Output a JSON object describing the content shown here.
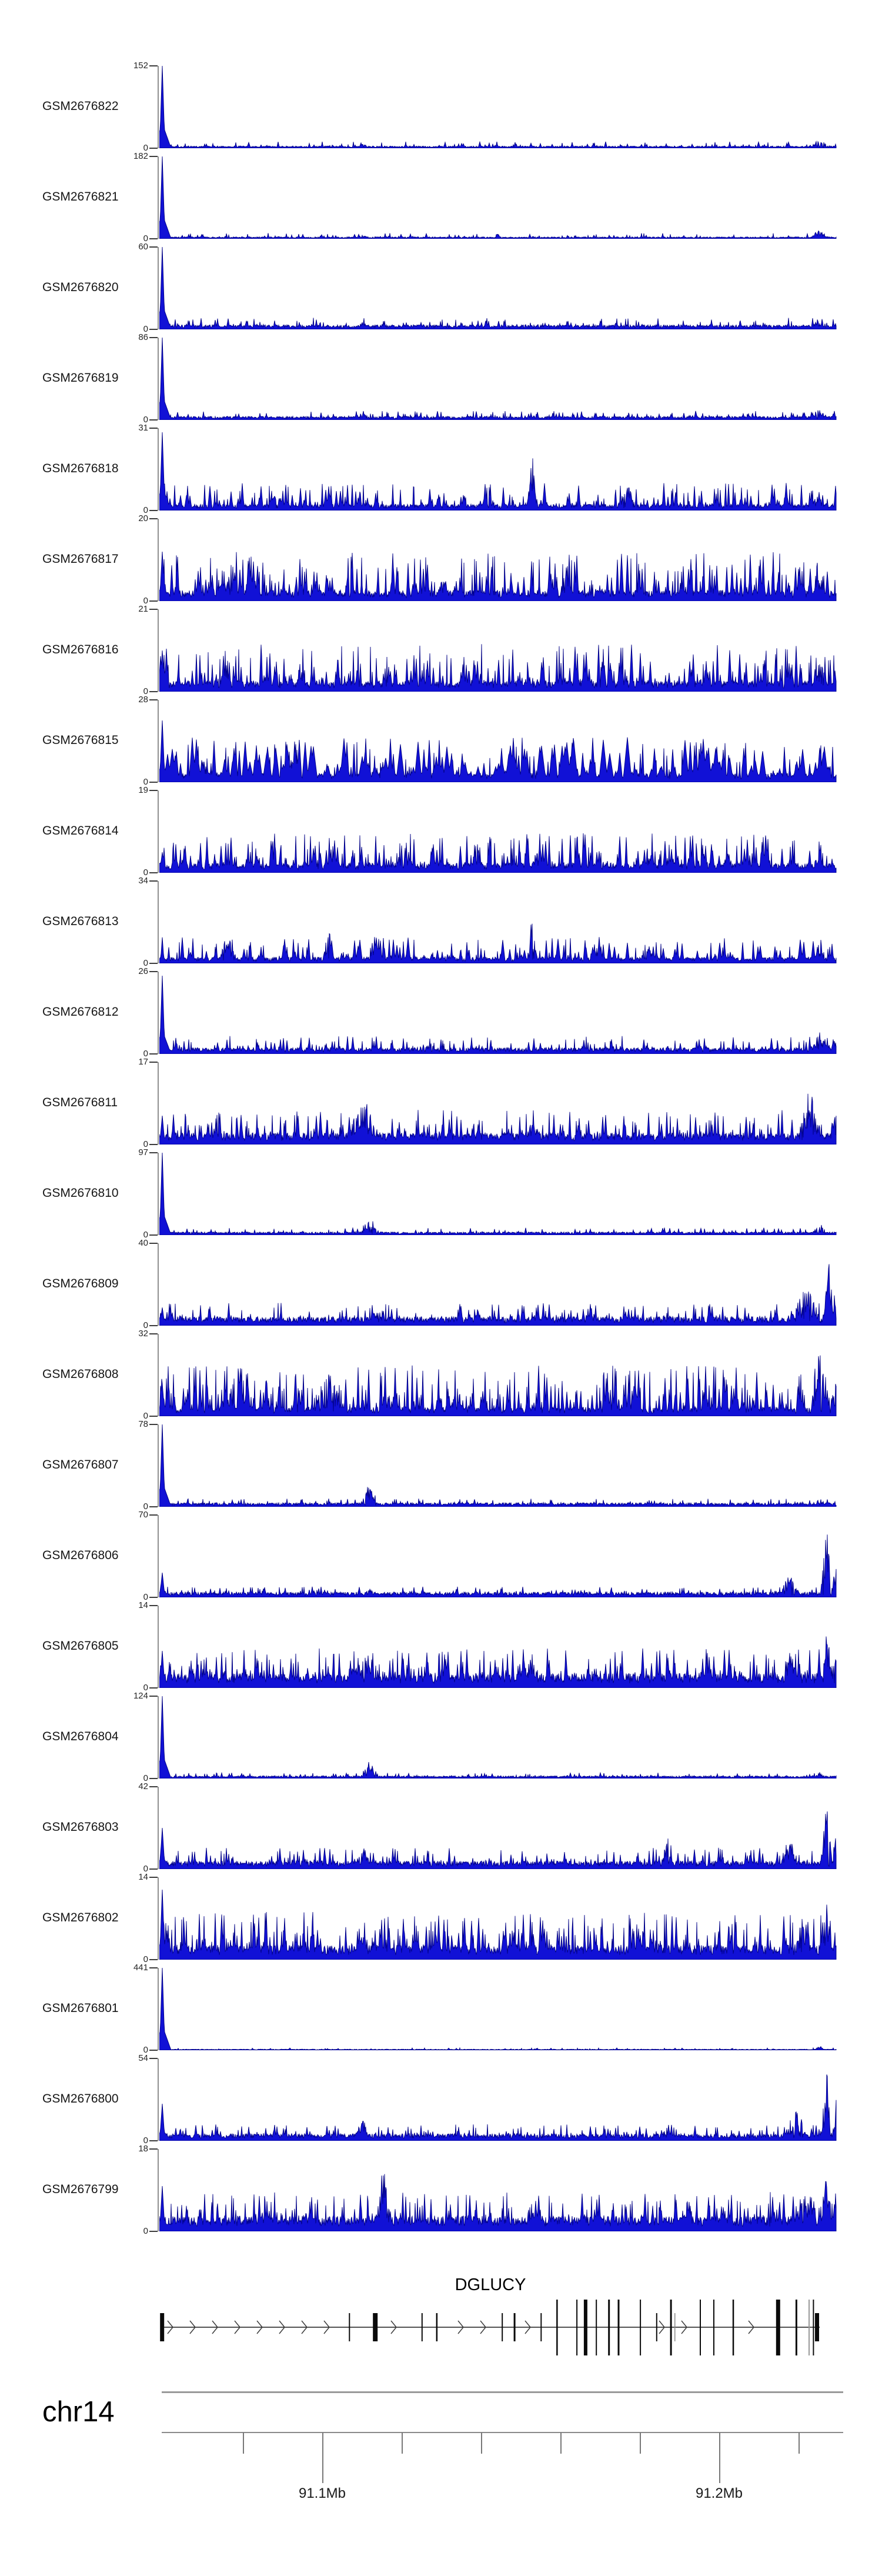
{
  "chart_data": {
    "type": "area",
    "title": "",
    "description": "Genome browser figure: 24 GEO sample (GSM) read-coverage tracks shown as blue filled signal over the DGLUCY locus on chromosome 14 (~91.06-91.23 Mb). Each track is autoscaled from 0 to its own maximum (value shown at top-left of each track). Below the signal tracks is the DGLUCY gene model (plus-strand, rightward arrows, vertical exon marks) and a genomic coordinate axis.",
    "region": {
      "chromosome": "chr14",
      "start_mb": 91.059,
      "end_mb": 91.23
    },
    "signal_color": "#1111d6",
    "signal_edge_color": "#000085",
    "y_axis_zero_label": "0",
    "tracks": [
      {
        "name": "GSM2676822",
        "ymax": 152,
        "seed": 101,
        "profile": {
          "left": 1,
          "base": 0.025,
          "gap": 6,
          "amp": 0.08,
          "pow": 2.5,
          "w": 2.4,
          "bumps": [
            [
              0.3,
              0.06,
              10
            ],
            [
              0.975,
              0.13,
              8
            ]
          ]
        }
      },
      {
        "name": "GSM2676821",
        "ymax": 182,
        "seed": 202,
        "profile": {
          "left": 1,
          "base": 0.022,
          "gap": 6,
          "amp": 0.07,
          "pow": 2.5,
          "w": 2.4,
          "bumps": [
            [
              0.3,
              0.05,
              8
            ],
            [
              0.5,
              0.13,
              3
            ],
            [
              0.975,
              0.15,
              8
            ]
          ]
        }
      },
      {
        "name": "GSM2676820",
        "ymax": 60,
        "seed": 303,
        "profile": {
          "left": 1,
          "base": 0.05,
          "gap": 5,
          "amp": 0.14,
          "pow": 2.2,
          "w": 2.4,
          "bumps": [
            [
              0.3,
              0.1,
              10
            ],
            [
              0.975,
              0.18,
              8
            ]
          ]
        }
      },
      {
        "name": "GSM2676819",
        "ymax": 86,
        "seed": 404,
        "profile": {
          "left": 1,
          "base": 0.04,
          "gap": 5,
          "amp": 0.11,
          "pow": 2.2,
          "w": 2.4,
          "bumps": [
            [
              0.3,
              0.09,
              10
            ],
            [
              0.975,
              0.15,
              8
            ]
          ]
        }
      },
      {
        "name": "GSM2676818",
        "ymax": 31,
        "seed": 505,
        "profile": {
          "left": 0.95,
          "base": 0.07,
          "gap": 4,
          "amp": 0.34,
          "pow": 2.1,
          "w": 3,
          "bumps": [
            [
              0.17,
              0.25,
              12
            ],
            [
              0.55,
              0.85,
              4
            ],
            [
              0.69,
              0.38,
              8
            ],
            [
              0.975,
              0.3,
              8
            ]
          ]
        }
      },
      {
        "name": "GSM2676817",
        "ymax": 20,
        "seed": 606,
        "profile": {
          "left": 0.6,
          "base": 0.12,
          "gap": 3,
          "amp": 0.6,
          "pow": 1.8,
          "w": 3,
          "bumps": [
            [
              0.1,
              0.3,
              15
            ],
            [
              0.42,
              0.3,
              10
            ],
            [
              0.975,
              0.35,
              8
            ]
          ]
        }
      },
      {
        "name": "GSM2676816",
        "ymax": 21,
        "seed": 707,
        "profile": {
          "left": 0.5,
          "base": 0.12,
          "gap": 3,
          "amp": 0.58,
          "pow": 1.8,
          "w": 3,
          "bumps": [
            [
              0.21,
              0.45,
              6
            ],
            [
              0.62,
              0.3,
              10
            ],
            [
              0.975,
              0.4,
              8
            ]
          ]
        }
      },
      {
        "name": "GSM2676815",
        "ymax": 28,
        "seed": 808,
        "profile": {
          "left": 0.75,
          "base": 0.1,
          "gap": 4,
          "amp": 0.55,
          "pow": 1.6,
          "w": 7,
          "bumps": [
            [
              0.07,
              0.35,
              14
            ],
            [
              0.19,
              0.45,
              10
            ],
            [
              0.33,
              0.35,
              14
            ],
            [
              0.52,
              0.5,
              8
            ],
            [
              0.975,
              0.45,
              8
            ]
          ]
        }
      },
      {
        "name": "GSM2676814",
        "ymax": 19,
        "seed": 909,
        "profile": {
          "left": 0.25,
          "base": 0.11,
          "gap": 3,
          "amp": 0.48,
          "pow": 1.9,
          "w": 3,
          "bumps": [
            [
              0.47,
              0.45,
              6
            ],
            [
              0.56,
              0.35,
              8
            ],
            [
              0.72,
              0.3,
              8
            ],
            [
              0.975,
              0.35,
              8
            ]
          ]
        }
      },
      {
        "name": "GSM2676813",
        "ymax": 34,
        "seed": 1010,
        "profile": {
          "left": 0.2,
          "base": 0.07,
          "gap": 4,
          "amp": 0.32,
          "pow": 2.1,
          "w": 4,
          "bumps": [
            [
              0.1,
              0.35,
              10
            ],
            [
              0.25,
              0.5,
              5
            ],
            [
              0.55,
              0.75,
              4
            ],
            [
              0.72,
              0.3,
              8
            ],
            [
              0.975,
              0.35,
              6
            ]
          ]
        }
      },
      {
        "name": "GSM2676812",
        "ymax": 26,
        "seed": 1111,
        "profile": {
          "left": 0.95,
          "base": 0.07,
          "gap": 4,
          "amp": 0.22,
          "pow": 2.2,
          "w": 2.4,
          "bumps": [
            [
              0.4,
              0.25,
              6
            ],
            [
              0.63,
              0.25,
              6
            ],
            [
              0.975,
              0.3,
              8
            ]
          ]
        }
      },
      {
        "name": "GSM2676811",
        "ymax": 17,
        "seed": 1212,
        "profile": {
          "left": 0.35,
          "base": 0.13,
          "gap": 3,
          "amp": 0.42,
          "pow": 1.9,
          "w": 3,
          "bumps": [
            [
              0.3,
              0.55,
              18
            ],
            [
              0.55,
              0.35,
              10
            ],
            [
              0.96,
              0.75,
              12
            ],
            [
              0.999,
              0.5,
              6
            ]
          ]
        }
      },
      {
        "name": "GSM2676810",
        "ymax": 97,
        "seed": 1313,
        "profile": {
          "left": 1,
          "base": 0.035,
          "gap": 5,
          "amp": 0.09,
          "pow": 2.4,
          "w": 2.4,
          "bumps": [
            [
              0.31,
              0.26,
              9
            ],
            [
              0.975,
              0.14,
              8
            ]
          ]
        }
      },
      {
        "name": "GSM2676809",
        "ymax": 40,
        "seed": 1414,
        "profile": {
          "left": 0.22,
          "base": 0.1,
          "gap": 4,
          "amp": 0.28,
          "pow": 2.0,
          "w": 2.6,
          "bumps": [
            [
              0.32,
              0.27,
              8
            ],
            [
              0.47,
              0.22,
              8
            ],
            [
              0.63,
              0.18,
              8
            ],
            [
              0.75,
              0.28,
              6
            ],
            [
              0.955,
              0.55,
              14
            ],
            [
              0.988,
              1,
              5
            ],
            [
              0.999,
              0.6,
              4
            ]
          ]
        }
      },
      {
        "name": "GSM2676808",
        "ymax": 32,
        "seed": 1515,
        "profile": {
          "left": 0.4,
          "base": 0.1,
          "gap": 3,
          "amp": 0.62,
          "pow": 1.7,
          "w": 2.6,
          "bumps": [
            [
              0.12,
              0.85,
              5
            ],
            [
              0.26,
              0.5,
              6
            ],
            [
              0.44,
              0.4,
              8
            ],
            [
              0.7,
              0.45,
              8
            ],
            [
              0.975,
              0.9,
              5
            ],
            [
              0.999,
              0.5,
              5
            ]
          ]
        }
      },
      {
        "name": "GSM2676807",
        "ymax": 78,
        "seed": 1616,
        "profile": {
          "left": 1,
          "base": 0.045,
          "gap": 5,
          "amp": 0.1,
          "pow": 2.3,
          "w": 2.4,
          "bumps": [
            [
              0.31,
              0.3,
              9
            ],
            [
              0.975,
              0.12,
              6
            ]
          ]
        }
      },
      {
        "name": "GSM2676806",
        "ymax": 70,
        "seed": 1717,
        "profile": {
          "left": 0.3,
          "base": 0.06,
          "gap": 4,
          "amp": 0.13,
          "pow": 2.2,
          "w": 2.4,
          "bumps": [
            [
              0.31,
              0.12,
              8
            ],
            [
              0.93,
              0.3,
              10
            ],
            [
              0.985,
              1,
              5
            ],
            [
              0.999,
              0.55,
              4
            ]
          ]
        }
      },
      {
        "name": "GSM2676805",
        "ymax": 14,
        "seed": 1818,
        "profile": {
          "left": 0.45,
          "base": 0.16,
          "gap": 3,
          "amp": 0.48,
          "pow": 1.8,
          "w": 2.8,
          "bumps": [
            [
              0.3,
              0.5,
              12
            ],
            [
              0.55,
              0.35,
              10
            ],
            [
              0.93,
              0.5,
              10
            ],
            [
              0.985,
              0.95,
              5
            ],
            [
              0.999,
              0.6,
              4
            ]
          ]
        }
      },
      {
        "name": "GSM2676804",
        "ymax": 124,
        "seed": 1919,
        "profile": {
          "left": 1,
          "base": 0.03,
          "gap": 5,
          "amp": 0.07,
          "pow": 2.5,
          "w": 2.4,
          "bumps": [
            [
              0.31,
              0.22,
              9
            ],
            [
              0.975,
              0.08,
              6
            ]
          ]
        }
      },
      {
        "name": "GSM2676803",
        "ymax": 42,
        "seed": 2020,
        "profile": {
          "left": 0.5,
          "base": 0.09,
          "gap": 4,
          "amp": 0.26,
          "pow": 2.0,
          "w": 2.6,
          "bumps": [
            [
              0.3,
              0.35,
              8
            ],
            [
              0.75,
              0.45,
              6
            ],
            [
              0.93,
              0.4,
              10
            ],
            [
              0.985,
              0.9,
              5
            ],
            [
              0.999,
              0.55,
              4
            ]
          ]
        }
      },
      {
        "name": "GSM2676802",
        "ymax": 14,
        "seed": 2121,
        "profile": {
          "left": 0.85,
          "base": 0.16,
          "gap": 3,
          "amp": 0.58,
          "pow": 1.7,
          "w": 2.8,
          "bumps": [
            [
              0.3,
              0.4,
              10
            ],
            [
              0.52,
              0.45,
              8
            ],
            [
              0.73,
              0.4,
              8
            ],
            [
              0.95,
              0.6,
              10
            ],
            [
              0.985,
              0.9,
              4
            ],
            [
              0.999,
              0.6,
              4
            ]
          ]
        }
      },
      {
        "name": "GSM2676801",
        "ymax": 441,
        "seed": 2222,
        "profile": {
          "left": 1,
          "base": 0.012,
          "gap": 7,
          "amp": 0.03,
          "pow": 3,
          "w": 2.2,
          "bumps": [
            [
              0.975,
              0.05,
              6
            ]
          ]
        }
      },
      {
        "name": "GSM2676800",
        "ymax": 54,
        "seed": 2323,
        "profile": {
          "left": 0.45,
          "base": 0.08,
          "gap": 4,
          "amp": 0.2,
          "pow": 2.1,
          "w": 2.6,
          "bumps": [
            [
              0.3,
              0.3,
              8
            ],
            [
              0.75,
              0.2,
              8
            ],
            [
              0.94,
              0.5,
              10
            ],
            [
              0.985,
              1,
              5
            ],
            [
              0.999,
              0.6,
              4
            ]
          ]
        }
      },
      {
        "name": "GSM2676799",
        "ymax": 18,
        "seed": 2424,
        "profile": {
          "left": 0.55,
          "base": 0.17,
          "gap": 3,
          "amp": 0.48,
          "pow": 1.8,
          "w": 2.8,
          "bumps": [
            [
              0.33,
              0.9,
              7
            ],
            [
              0.55,
              0.4,
              10
            ],
            [
              0.78,
              0.45,
              8
            ],
            [
              0.95,
              0.6,
              10
            ],
            [
              0.985,
              1,
              5
            ],
            [
              0.999,
              0.65,
              4
            ]
          ]
        }
      }
    ],
    "gene_track": {
      "gene_label": "DGLUCY",
      "strand_direction": "right",
      "gene_start_mb": 91.0594,
      "gene_end_mb": 91.2255,
      "exons": [
        [
          91.0598,
          7,
          "s"
        ],
        [
          91.107,
          2,
          "s"
        ],
        [
          91.1135,
          8,
          "s"
        ],
        [
          91.1253,
          2,
          "s"
        ],
        [
          91.129,
          2.5,
          "s"
        ],
        [
          91.1455,
          2,
          "s"
        ],
        [
          91.1486,
          3,
          "s"
        ],
        [
          91.1553,
          2,
          "s"
        ],
        [
          91.1593,
          2.5,
          "t"
        ],
        [
          91.1643,
          2,
          "t"
        ],
        [
          91.1665,
          6,
          "t"
        ],
        [
          91.1692,
          2,
          "t"
        ],
        [
          91.1724,
          3,
          "t"
        ],
        [
          91.1748,
          3,
          "t"
        ],
        [
          91.1803,
          2,
          "t"
        ],
        [
          91.1844,
          2,
          "s"
        ],
        [
          91.188,
          3,
          "t"
        ],
        [
          91.189,
          1.5,
          "s",
          "#888888"
        ],
        [
          91.1954,
          2,
          "t"
        ],
        [
          91.1988,
          2,
          "t"
        ],
        [
          91.2037,
          2.5,
          "t"
        ],
        [
          91.215,
          7,
          "t"
        ],
        [
          91.2196,
          3,
          "t"
        ],
        [
          91.2228,
          2,
          "t",
          "#999999"
        ],
        [
          91.2239,
          2,
          "t"
        ],
        [
          91.2248,
          7,
          "s"
        ]
      ]
    },
    "axis": {
      "chromosome_label": "chr14",
      "major_ticks": [
        {
          "mb": 91.1,
          "label": "91.1Mb"
        },
        {
          "mb": 91.2,
          "label": "91.2Mb"
        }
      ],
      "minor_ticks_mb": [
        91.08,
        91.12,
        91.14,
        91.16,
        91.18,
        91.22
      ]
    }
  }
}
